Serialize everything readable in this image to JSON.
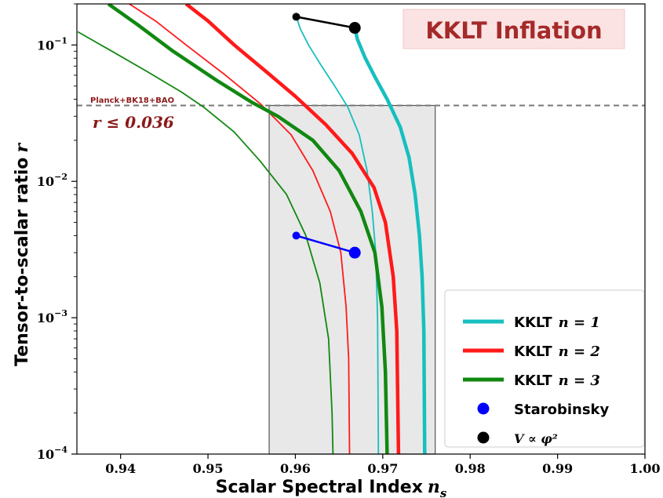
{
  "chart_data": {
    "type": "line",
    "title": "KKLT Inflation",
    "xlabel": "Scalar Spectral Index",
    "xlabel_symbol": "n",
    "xlabel_sub": "s",
    "ylabel": "Tensor-to-scalar ratio",
    "ylabel_symbol": "r",
    "xlim": [
      0.935,
      1.0
    ],
    "ylim": [
      0.0001,
      0.2
    ],
    "yscale": "log",
    "x_ticks": [
      0.94,
      0.95,
      0.96,
      0.97,
      0.98,
      0.99,
      1.0
    ],
    "x_tick_labels": [
      "0.94",
      "0.95",
      "0.96",
      "0.97",
      "0.98",
      "0.99",
      "1.00"
    ],
    "y_ticks": [
      {
        "value": 0.1,
        "base": "10",
        "exp": "−1"
      },
      {
        "value": 0.01,
        "base": "10",
        "exp": "−2"
      },
      {
        "value": 0.001,
        "base": "10",
        "exp": "−3"
      },
      {
        "value": 0.0001,
        "base": "10",
        "exp": "−4"
      }
    ],
    "shaded_region": {
      "x_min": 0.957,
      "x_max": 0.976,
      "y_max": 0.036,
      "color": "#e8e8e8"
    },
    "constraint": {
      "r_value": 0.036,
      "label": "Planck+BK18+BAO",
      "text": "r ≤ 0.036",
      "color": "#8b1a1a"
    },
    "legend_position": "lower-right",
    "series": [
      {
        "name": "KKLT n = 1",
        "legend_text": "KKLT",
        "legend_math": "n = 1",
        "color": "#17bfbf",
        "width": "thick",
        "points": [
          [
            0.9668,
            0.1335
          ],
          [
            0.9671,
            0.11
          ],
          [
            0.968,
            0.08
          ],
          [
            0.969,
            0.06
          ],
          [
            0.9705,
            0.04
          ],
          [
            0.972,
            0.025
          ],
          [
            0.973,
            0.015
          ],
          [
            0.9737,
            0.008
          ],
          [
            0.9742,
            0.004
          ],
          [
            0.9745,
            0.002
          ],
          [
            0.9747,
            0.0008
          ],
          [
            0.9748,
            0.0001
          ]
        ]
      },
      {
        "name": "KKLT n = 1",
        "color": "#17bfbf",
        "width": "thin",
        "points": [
          [
            0.9601,
            0.1609
          ],
          [
            0.9606,
            0.13
          ],
          [
            0.9615,
            0.1
          ],
          [
            0.963,
            0.07
          ],
          [
            0.9645,
            0.05
          ],
          [
            0.966,
            0.035
          ],
          [
            0.9673,
            0.022
          ],
          [
            0.9682,
            0.012
          ],
          [
            0.9688,
            0.006
          ],
          [
            0.9692,
            0.003
          ],
          [
            0.9694,
            0.001
          ],
          [
            0.9695,
            0.0001
          ]
        ]
      },
      {
        "name": "KKLT n = 2",
        "legend_text": "KKLT",
        "legend_math": "n = 2",
        "color": "#ff1a1a",
        "width": "thick",
        "points": [
          [
            0.9475,
            0.2
          ],
          [
            0.95,
            0.15
          ],
          [
            0.953,
            0.1
          ],
          [
            0.9565,
            0.065
          ],
          [
            0.96,
            0.042
          ],
          [
            0.9635,
            0.026
          ],
          [
            0.9665,
            0.016
          ],
          [
            0.969,
            0.009
          ],
          [
            0.9703,
            0.005
          ],
          [
            0.9712,
            0.002
          ],
          [
            0.9716,
            0.0008
          ],
          [
            0.9718,
            0.0001
          ]
        ]
      },
      {
        "name": "KKLT n = 2",
        "color": "#ff1a1a",
        "width": "thin",
        "points": [
          [
            0.941,
            0.2
          ],
          [
            0.944,
            0.15
          ],
          [
            0.9475,
            0.1
          ],
          [
            0.952,
            0.06
          ],
          [
            0.956,
            0.037
          ],
          [
            0.9595,
            0.022
          ],
          [
            0.962,
            0.012
          ],
          [
            0.964,
            0.006
          ],
          [
            0.9652,
            0.003
          ],
          [
            0.9658,
            0.0012
          ],
          [
            0.9661,
            0.0005
          ],
          [
            0.9662,
            0.0001
          ]
        ]
      },
      {
        "name": "KKLT n = 3",
        "legend_text": "KKLT",
        "legend_math": "n = 3",
        "color": "#118811",
        "width": "thick",
        "points": [
          [
            0.9386,
            0.2
          ],
          [
            0.942,
            0.14
          ],
          [
            0.946,
            0.09
          ],
          [
            0.951,
            0.055
          ],
          [
            0.955,
            0.038
          ],
          [
            0.958,
            0.03
          ],
          [
            0.962,
            0.02
          ],
          [
            0.965,
            0.012
          ],
          [
            0.9675,
            0.006
          ],
          [
            0.9691,
            0.003
          ],
          [
            0.9699,
            0.0012
          ],
          [
            0.9703,
            0.0004
          ],
          [
            0.9705,
            0.0001
          ]
        ]
      },
      {
        "name": "KKLT n = 3",
        "color": "#118811",
        "width": "thin",
        "points": [
          [
            0.9351,
            0.125
          ],
          [
            0.939,
            0.09
          ],
          [
            0.943,
            0.064
          ],
          [
            0.947,
            0.045
          ],
          [
            0.9495,
            0.035
          ],
          [
            0.953,
            0.023
          ],
          [
            0.956,
            0.014
          ],
          [
            0.959,
            0.008
          ],
          [
            0.9612,
            0.004
          ],
          [
            0.9628,
            0.0018
          ],
          [
            0.9638,
            0.0007
          ],
          [
            0.9642,
            0.0002
          ],
          [
            0.9643,
            0.0001
          ]
        ]
      },
      {
        "name": "Starobinsky",
        "legend_text": "Starobinsky",
        "color": "#0000ff",
        "marker": "dot",
        "points": [
          [
            0.9601,
            0.004
          ],
          [
            0.9668,
            0.003
          ]
        ]
      },
      {
        "name": "V ∝ φ²",
        "legend_text": "V ∝ φ²",
        "color": "#000000",
        "marker": "dot",
        "points": [
          [
            0.9601,
            0.1609
          ],
          [
            0.9668,
            0.1335
          ]
        ]
      }
    ]
  }
}
